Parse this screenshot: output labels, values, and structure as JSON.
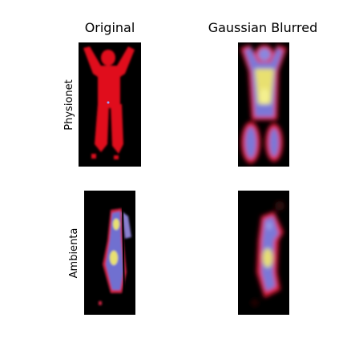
{
  "columns": [
    "Original",
    "Gaussian Blurred"
  ],
  "rows": [
    "Physionet",
    "Ambienta"
  ]
}
